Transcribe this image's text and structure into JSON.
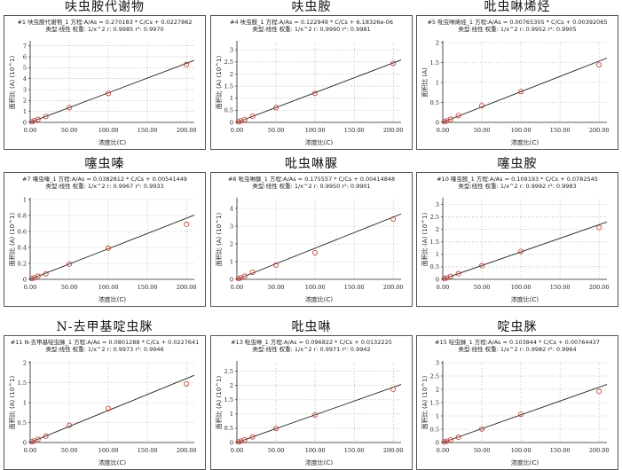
{
  "colors": {
    "line": "#222222",
    "marker": "#c0392b",
    "grid": "#999999"
  },
  "common": {
    "xlabel": "浓度比(C)",
    "xticks": [
      "0.00",
      "50.00",
      "100.00",
      "150.00",
      "200.00"
    ],
    "x": [
      2,
      5,
      10,
      20,
      50,
      100,
      200
    ]
  },
  "chart_data": [
    {
      "type": "scatter",
      "title": "呋虫胺代谢物",
      "header1": "#1  呋虫胺代谢物_1   方程:A/As = 0.270183 * C/Cs + 0.0227862",
      "header2": "类型:线性   权重: 1/x^2   r: 0.9985 r²: 0.9970",
      "ylabel": "面积比 (A) (10^1)",
      "y_exp": 1,
      "slope": 0.270183,
      "intercept": 0.0227862,
      "ylim": [
        0,
        7.3
      ],
      "yticks": [
        0,
        1,
        2,
        3,
        4,
        5,
        6,
        7
      ],
      "xlim": [
        0,
        210
      ],
      "y": [
        0.05,
        0.14,
        0.27,
        0.54,
        1.35,
        2.65,
        5.3
      ]
    },
    {
      "type": "scatter",
      "title": "呋虫胺",
      "header1": "#4  呋虫胺_1   方程:A/As = 0.122949 * C/Cs + 6.18326e-06",
      "header2": "类型:线性   权重: 1/x^2   r: 0.9990 r²: 0.9981",
      "ylabel": "面积比 (A) (10^1)",
      "y_exp": 1,
      "slope": 0.122949,
      "intercept": 6.18326e-06,
      "ylim": [
        0,
        3.3
      ],
      "yticks": [
        0,
        0.5,
        1,
        1.5,
        2,
        2.5,
        3
      ],
      "xlim": [
        0,
        210
      ],
      "y": [
        0.025,
        0.06,
        0.12,
        0.25,
        0.61,
        1.2,
        2.44
      ]
    },
    {
      "type": "scatter",
      "title": "吡虫啉烯烃",
      "header1": "#5  吡虫啉烯烃_1   方程:A/As = 0.00765305 * C/Cs + 0.00392065",
      "header2": "类型:线性   权重: 1/x^2   r: 0.9952 r²: 0.9905",
      "ylabel": "面积比 (A)",
      "y_exp": 0,
      "slope": 0.00765305,
      "intercept": 0.00392065,
      "ylim": [
        0,
        2
      ],
      "yticks": [
        0,
        0.5,
        1,
        1.5,
        2
      ],
      "xlim": [
        0,
        210
      ],
      "y": [
        0.02,
        0.04,
        0.08,
        0.17,
        0.42,
        0.77,
        1.44
      ]
    },
    {
      "type": "scatter",
      "title": "噻虫嗪",
      "header1": "#7  噻虫嗪_1   方程:A/As = 0.0382812 * C/Cs + 0.00541449",
      "header2": "类型:线性   权重: 1/x^2   r: 0.9967 r²: 0.9933",
      "ylabel": "面积比 (A) (10^1)",
      "y_exp": 1,
      "slope": 0.0382812,
      "intercept": 0.00541449,
      "ylim": [
        0,
        1
      ],
      "yticks": [
        0,
        0.2,
        0.4,
        0.6,
        0.8,
        1
      ],
      "xlim": [
        0,
        210
      ],
      "y": [
        0.01,
        0.02,
        0.04,
        0.07,
        0.19,
        0.39,
        0.69
      ]
    },
    {
      "type": "scatter",
      "title": "吡虫啉脲",
      "header1": "#8  吡虫啉脲_1   方程:A/As = 0.175557 * C/Cs + 0.00414848",
      "header2": "类型:线性   权重: 1/x^2   r: 0.9950 r²: 0.9901",
      "ylabel": "面积比 (A) (10^1)",
      "y_exp": 1,
      "slope": 0.175557,
      "intercept": 0.00414848,
      "ylim": [
        0,
        4.5
      ],
      "yticks": [
        0,
        1,
        2,
        3,
        4
      ],
      "xlim": [
        0,
        210
      ],
      "y": [
        0.04,
        0.09,
        0.18,
        0.4,
        0.8,
        1.5,
        3.4
      ]
    },
    {
      "type": "scatter",
      "title": "噻虫胺",
      "header1": "#10  噻虫胺_1   方程:A/As = 0.109193 * C/Cs + 0.0782545",
      "header2": "类型:线性   权重: 1/x^2   r: 0.9992 r²: 0.9983",
      "ylabel": "面积比 (A) (10^1)",
      "y_exp": 1,
      "slope": 0.109193,
      "intercept": 0.0782545,
      "ylim": [
        0,
        3.2
      ],
      "yticks": [
        0,
        0.5,
        1,
        1.5,
        2,
        2.5,
        3
      ],
      "xlim": [
        0,
        210
      ],
      "y": [
        0.03,
        0.06,
        0.12,
        0.23,
        0.55,
        1.12,
        2.08
      ]
    },
    {
      "type": "scatter",
      "title": "N-去甲基啶虫脒",
      "header1": "#11  N-去甲基啶虫脒_1   方程:A/As = 0.0801288 * C/Cs + 0.0227641",
      "header2": "类型:线性   权重: 1/x^2   r: 0.9973 r²: 0.9946",
      "ylabel": "面积比 (A) (10^1)",
      "y_exp": 1,
      "slope": 0.0801288,
      "intercept": 0.0227641,
      "ylim": [
        0,
        2
      ],
      "yticks": [
        0,
        0.5,
        1,
        1.5,
        2
      ],
      "xlim": [
        0,
        210
      ],
      "y": [
        0.02,
        0.04,
        0.08,
        0.16,
        0.43,
        0.85,
        1.47
      ]
    },
    {
      "type": "scatter",
      "title": "吡虫啉",
      "header1": "#13  吡虫啉_1   方程:A/As = 0.096822 * C/Cs + 0.0132225",
      "header2": "类型:线性   权重: 1/x^2   r: 0.9971 r²: 0.9942",
      "ylabel": "面积比 (A) (10^1)",
      "y_exp": 1,
      "slope": 0.096822,
      "intercept": 0.0132225,
      "ylim": [
        0,
        2.8
      ],
      "yticks": [
        0,
        0.5,
        1,
        1.5,
        2,
        2.5
      ],
      "xlim": [
        0,
        210
      ],
      "y": [
        0.02,
        0.05,
        0.1,
        0.2,
        0.49,
        0.97,
        1.87
      ]
    },
    {
      "type": "scatter",
      "title": "啶虫脒",
      "header1": "#15  啶虫脒_1   方程:A/As = 0.103844 * C/Cs + 0.00764437",
      "header2": "类型:线性   权重: 1/x^2   r: 0.9982 r²: 0.9964",
      "ylabel": "面积比 (A) (10^1)",
      "y_exp": 1,
      "slope": 0.103844,
      "intercept": 0.00764437,
      "ylim": [
        0,
        3
      ],
      "yticks": [
        0,
        0.5,
        1,
        1.5,
        2,
        2.5,
        3
      ],
      "xlim": [
        0,
        210
      ],
      "y": [
        0.02,
        0.05,
        0.1,
        0.2,
        0.51,
        1.06,
        1.92
      ]
    }
  ]
}
